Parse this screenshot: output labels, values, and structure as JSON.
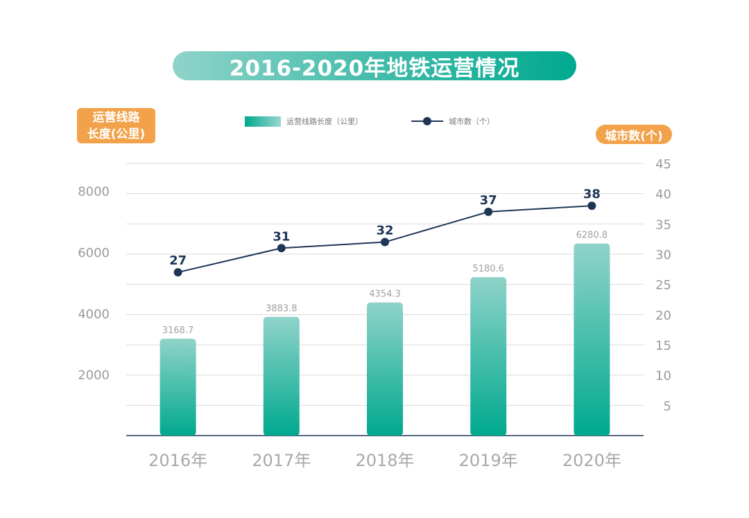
{
  "title": "2016-2020年地铁运营情况",
  "left_axis_badge": [
    "运营线路",
    "长度(公里)"
  ],
  "right_axis_badge": "城市数(个)",
  "colors": {
    "bar_top": "#8fd3c9",
    "bar_bottom": "#00a98f",
    "line": "#1e3556",
    "badge": "#f2a24a"
  },
  "chart_data": {
    "type": "bar",
    "categories": [
      "2016年",
      "2017年",
      "2018年",
      "2019年",
      "2020年"
    ],
    "series": [
      {
        "name": "运营线路长度（公里）",
        "type": "bar",
        "axis": "left",
        "values": [
          3168.7,
          3883.8,
          4354.3,
          5180.6,
          6280.8
        ],
        "labels": [
          "3168.7",
          "3883.8",
          "4354.3",
          "5180.6",
          "6280.8"
        ]
      },
      {
        "name": "城市数（个）",
        "type": "line",
        "axis": "right",
        "values": [
          27,
          31,
          32,
          37,
          38
        ],
        "labels": [
          "27",
          "31",
          "32",
          "37",
          "38"
        ]
      }
    ],
    "y_left": {
      "range": [
        0,
        8900
      ],
      "ticks": [
        2000,
        4000,
        6000,
        8000
      ],
      "tick_labels": [
        "2000",
        "4000",
        "6000",
        "8000"
      ]
    },
    "y_right": {
      "range": [
        0,
        45
      ],
      "ticks": [
        5,
        10,
        15,
        20,
        25,
        30,
        35,
        40,
        45
      ],
      "tick_labels": [
        "5",
        "10",
        "15",
        "20",
        "25",
        "30",
        "35",
        "40",
        "45"
      ]
    },
    "grid": true,
    "legend_position": "top"
  }
}
